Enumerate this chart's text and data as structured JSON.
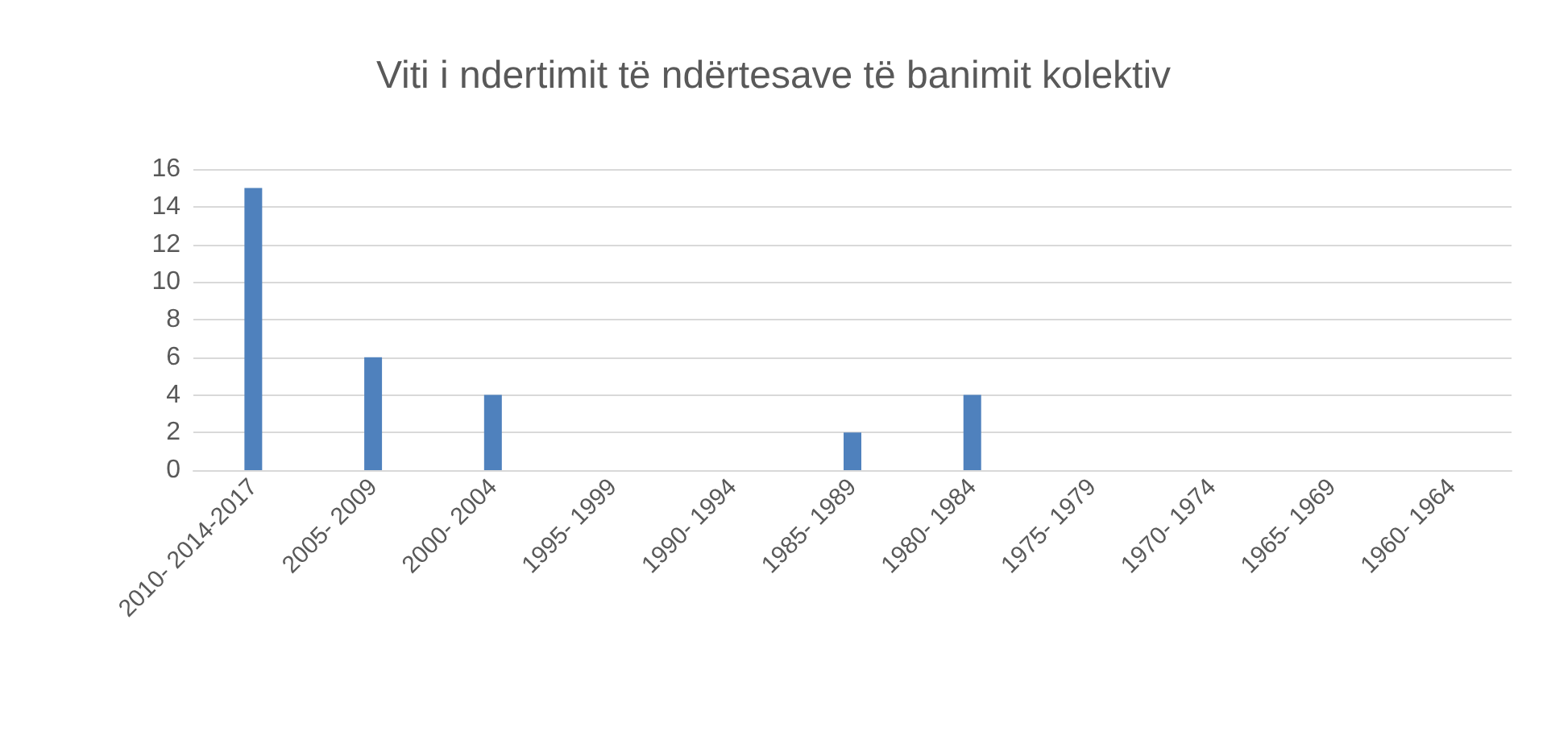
{
  "chart_data": {
    "type": "bar",
    "title": "Viti i ndertimit të ndërtesave të banimit kolektiv",
    "categories": [
      "2010- 2014-2017",
      "2005- 2009",
      "2000- 2004",
      "1995- 1999",
      "1990- 1994",
      "1985- 1989",
      "1980- 1984",
      "1975- 1979",
      "1970- 1974",
      "1965- 1969",
      "1960- 1964"
    ],
    "values": [
      15,
      6,
      4,
      0,
      0,
      2,
      4,
      0,
      0,
      0,
      0
    ],
    "color": "#4f81bd",
    "ylim": [
      0,
      16
    ],
    "yticks": [
      0,
      2,
      4,
      6,
      8,
      10,
      12,
      14,
      16
    ],
    "grid": "y"
  }
}
